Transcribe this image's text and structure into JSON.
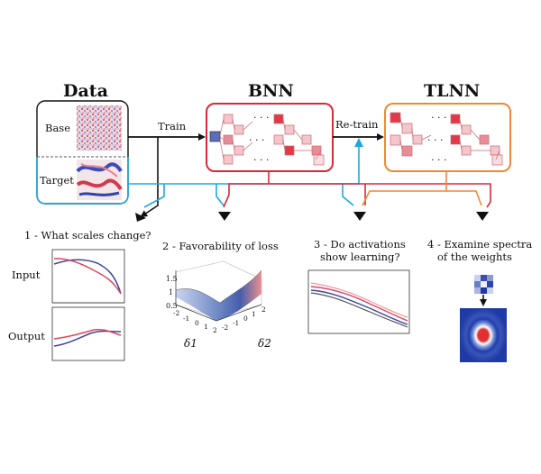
{
  "headers": {
    "data": "Data",
    "bnn": "BNN",
    "tlnn": "TLNN"
  },
  "data_box": {
    "base": "Base",
    "target": "Target"
  },
  "arrows": {
    "train": "Train",
    "retrain": "Re-train"
  },
  "network": {
    "ellipsis": "· · ·"
  },
  "steps": {
    "s1": "1 - What scales change?",
    "s2": "2 - Favorability of loss",
    "s3_line1": "3 - Do activations",
    "s3_line2": "show learning?",
    "s4_line1": "4 - Examine spectra",
    "s4_line2": "of the weights"
  },
  "panel1": {
    "input": "Input",
    "output": "Output"
  },
  "surface_plot": {
    "z_ticks": [
      "1.5",
      "1",
      "0.5"
    ],
    "d1_ticks": [
      "-2",
      "-1",
      "0",
      "1",
      "2"
    ],
    "d2_ticks": [
      "-2",
      "-1",
      "0",
      "1",
      "2"
    ],
    "xlabel": "δ1",
    "ylabel": "δ2"
  },
  "colors": {
    "bnn": "#d62a3a",
    "tlnn": "#ee8a33",
    "cyan": "#1fa8e0",
    "black": "#111111",
    "series_red": "#e0455a",
    "series_blue": "#3a45a0"
  }
}
